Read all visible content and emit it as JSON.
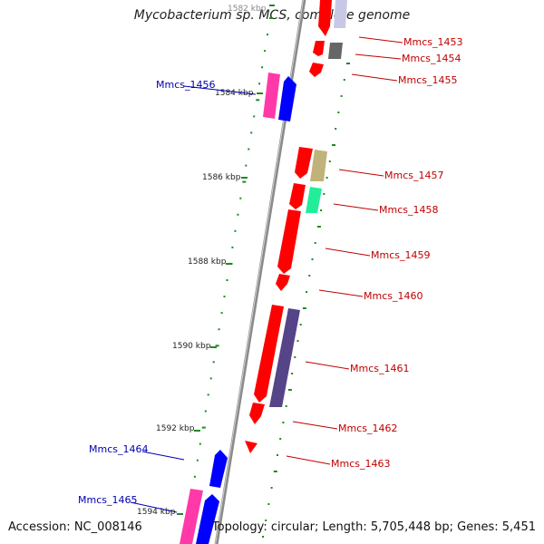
{
  "title": "Mycobacterium sp. MCS, complete genome",
  "footer": {
    "accession": "Accession: NC_008146",
    "info": "Topology: circular; Length: 5,705,448 bp; Genes: 5,451"
  },
  "colors": {
    "backbone": "#8a8a8a",
    "tick": "#1f8a1f",
    "forward_label": "#c00000",
    "reverse_label": "#0000b0"
  },
  "scale_labels": [
    "1582 kbp",
    "1584 kbp",
    "1586 kbp",
    "1588 kbp",
    "1590 kbp",
    "1592 kbp",
    "1594 kbp"
  ],
  "gene_labels": [
    {
      "name": "Mmcs_1453",
      "strand": "forward"
    },
    {
      "name": "Mmcs_1454",
      "strand": "forward"
    },
    {
      "name": "Mmcs_1455",
      "strand": "forward"
    },
    {
      "name": "Mmcs_1456",
      "strand": "reverse"
    },
    {
      "name": "Mmcs_1457",
      "strand": "forward"
    },
    {
      "name": "Mmcs_1458",
      "strand": "forward"
    },
    {
      "name": "Mmcs_1459",
      "strand": "forward"
    },
    {
      "name": "Mmcs_1460",
      "strand": "forward"
    },
    {
      "name": "Mmcs_1461",
      "strand": "forward"
    },
    {
      "name": "Mmcs_1462",
      "strand": "forward"
    },
    {
      "name": "Mmcs_1463",
      "strand": "forward"
    },
    {
      "name": "Mmcs_1464",
      "strand": "reverse"
    },
    {
      "name": "Mmcs_1465",
      "strand": "reverse"
    }
  ]
}
